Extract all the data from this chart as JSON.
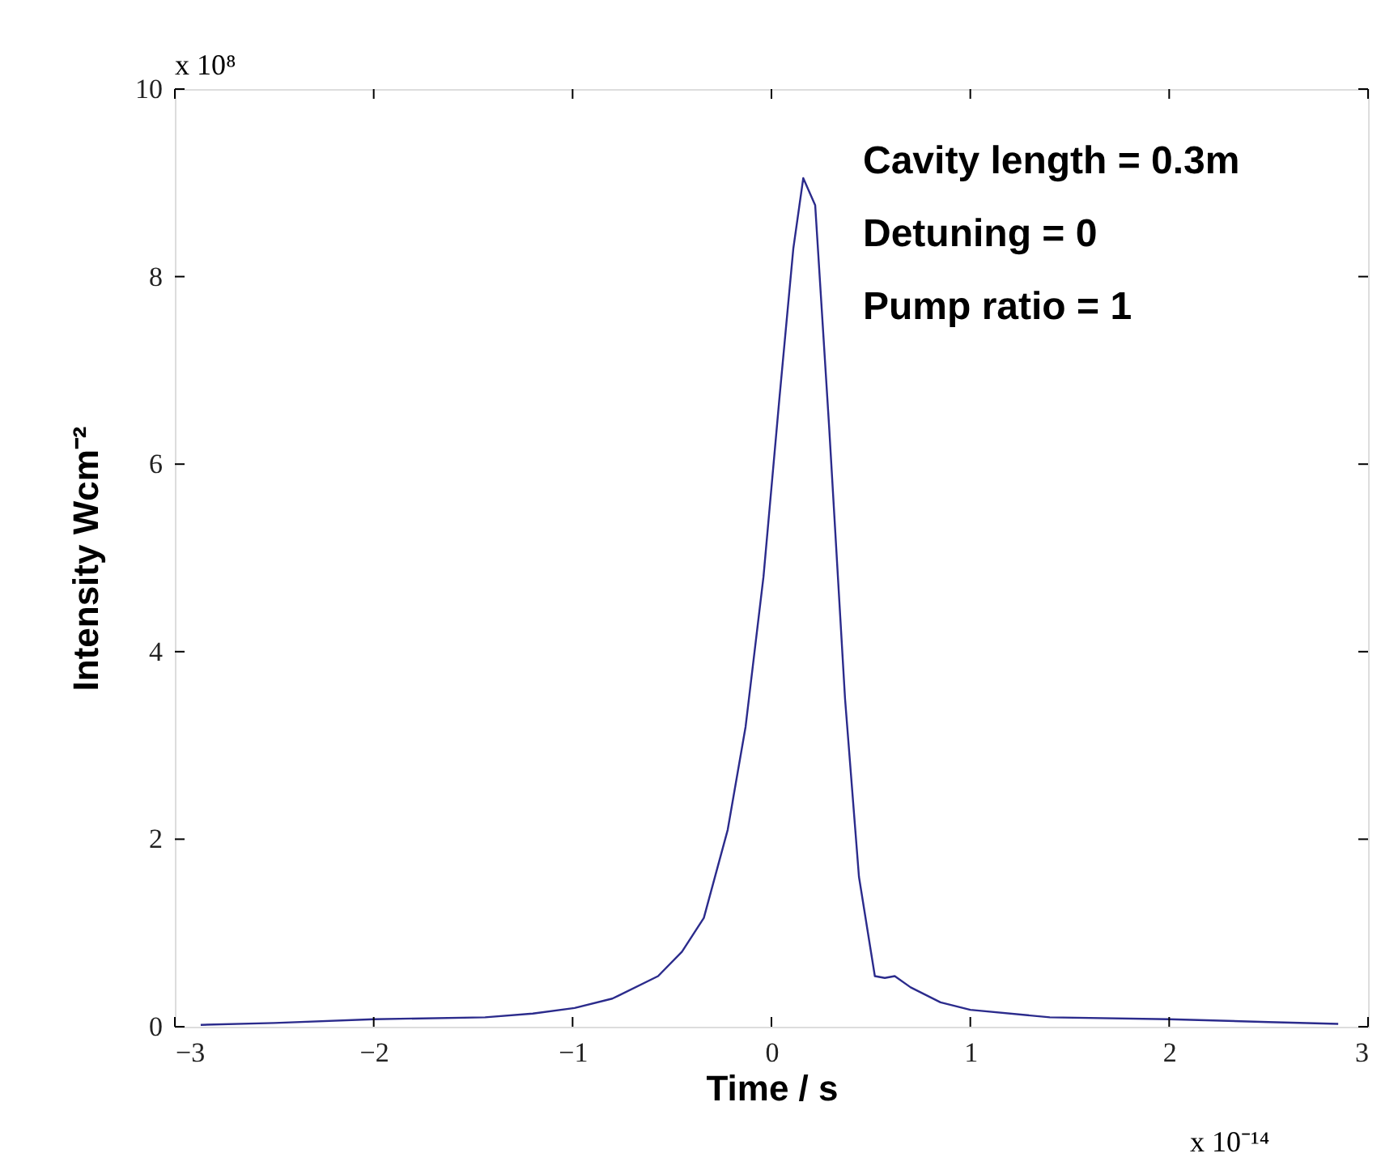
{
  "chart_data": {
    "type": "line",
    "xlabel": "Time / s",
    "ylabel": "Intensity  Wcm⁻²",
    "x": [
      -2.87,
      -2.5,
      -2.0,
      -1.44,
      -1.2,
      -0.99,
      -0.8,
      -0.57,
      -0.45,
      -0.34,
      -0.22,
      -0.13,
      -0.04,
      0.04,
      0.11,
      0.16,
      0.22,
      0.29,
      0.37,
      0.44,
      0.52,
      0.57,
      0.62,
      0.7,
      0.85,
      1.0,
      1.4,
      2.0,
      2.5,
      2.85
    ],
    "series": [
      {
        "color": "#2b2b8c",
        "values": [
          0.02,
          0.04,
          0.08,
          0.1,
          0.14,
          0.2,
          0.3,
          0.54,
          0.8,
          1.16,
          2.1,
          3.2,
          4.8,
          6.7,
          8.3,
          9.05,
          8.76,
          6.4,
          3.5,
          1.6,
          0.54,
          0.52,
          0.54,
          0.42,
          0.26,
          0.18,
          0.1,
          0.08,
          0.05,
          0.03
        ]
      }
    ],
    "xlim": [
      -3,
      3
    ],
    "xticks": [
      -3,
      -2,
      -1,
      0,
      1,
      2,
      3
    ],
    "ylim": [
      0,
      10
    ],
    "yticks": [
      0,
      2,
      4,
      6,
      8,
      10
    ],
    "grid": false,
    "legend": false,
    "marker": "none",
    "line_style": "solid",
    "annotations": [
      "Cavity length = 0.3m",
      "Detuning     = 0",
      "Pump ratio = 1",
      "x 10⁸",
      "x 10⁻¹⁴"
    ]
  }
}
